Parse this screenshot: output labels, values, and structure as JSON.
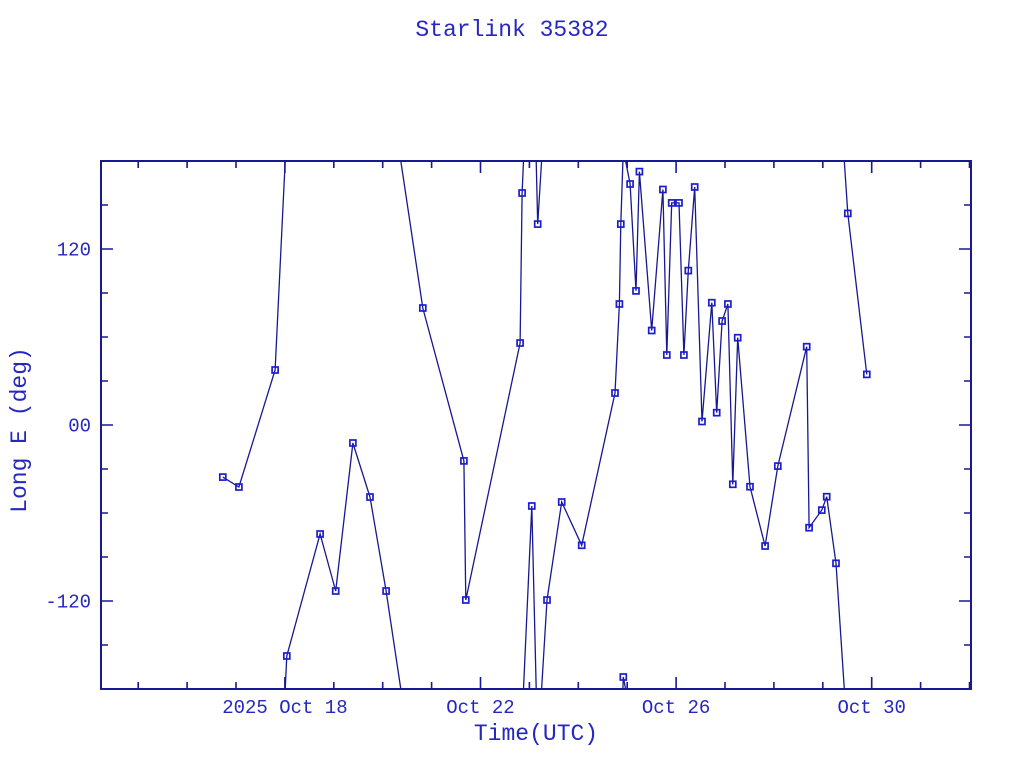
{
  "window": {
    "background": "#ffffff"
  },
  "title": "Starlink 35382",
  "axes": {
    "ylabel": "Long E (deg)",
    "xlabel": "Time(UTC)"
  },
  "colors": {
    "frame_and_line": "#181890",
    "marker": "#1d1dcf",
    "text": "#2626c3"
  },
  "chart_data": {
    "type": "line",
    "title": "Starlink 35382",
    "xlabel": "Time(UTC)",
    "ylabel": "Long E (deg)",
    "x_units": "day of October 2025, UTC (32 = Nov 1)",
    "y_units": "degrees east longitude",
    "xlim": [
      14.24,
      32.03
    ],
    "ylim": [
      -180,
      180
    ],
    "wrap_at": 180,
    "grid": false,
    "legend": false,
    "marker": "open-square",
    "x_minor_step_days": 1,
    "x_major_ticks": [
      18,
      22,
      26,
      30
    ],
    "x_major_tick_labels": [
      "2025 Oct 18",
      "Oct 22",
      "Oct 26",
      "Oct 30"
    ],
    "y_minor_step": 30,
    "y_major_ticks": [
      120,
      0,
      -120
    ],
    "y_major_tick_labels": [
      "120",
      "00",
      "-120"
    ],
    "points": [
      [
        16.73,
        -35.5
      ],
      [
        17.06,
        -42.3
      ],
      [
        17.8,
        37.5
      ],
      [
        18.04,
        -157.5
      ],
      [
        18.72,
        -74.3
      ],
      [
        19.04,
        -113.2
      ],
      [
        19.39,
        -12.3
      ],
      [
        19.74,
        -49.1
      ],
      [
        20.07,
        -113.2
      ],
      [
        20.82,
        79.8
      ],
      [
        21.66,
        -24.5
      ],
      [
        21.7,
        -119.3
      ],
      [
        22.81,
        55.9
      ],
      [
        22.85,
        158.2
      ],
      [
        23.05,
        -55.2
      ],
      [
        23.17,
        137.0
      ],
      [
        23.36,
        -119.3
      ],
      [
        23.66,
        -52.5
      ],
      [
        24.07,
        -82.0
      ],
      [
        24.75,
        21.8
      ],
      [
        24.84,
        82.5
      ],
      [
        24.87,
        137.0
      ],
      [
        24.92,
        -171.8
      ],
      [
        25.06,
        164.3
      ],
      [
        25.18,
        91.4
      ],
      [
        25.25,
        172.8
      ],
      [
        25.5,
        64.4
      ],
      [
        25.73,
        160.6
      ],
      [
        25.81,
        47.7
      ],
      [
        25.91,
        151.4
      ],
      [
        26.06,
        151.4
      ],
      [
        26.16,
        47.7
      ],
      [
        26.25,
        105.3
      ],
      [
        26.38,
        162.3
      ],
      [
        26.53,
        2.4
      ],
      [
        26.73,
        83.4
      ],
      [
        26.83,
        8.4
      ],
      [
        26.94,
        70.9
      ],
      [
        27.06,
        82.5
      ],
      [
        27.16,
        -40.4
      ],
      [
        27.26,
        59.5
      ],
      [
        27.51,
        -42.1
      ],
      [
        27.82,
        -82.5
      ],
      [
        28.08,
        -28.0
      ],
      [
        28.67,
        53.4
      ],
      [
        28.72,
        -70.0
      ],
      [
        28.98,
        -58.0
      ],
      [
        29.08,
        -48.9
      ],
      [
        29.27,
        -94.3
      ],
      [
        29.51,
        144.3
      ],
      [
        29.9,
        34.5
      ]
    ]
  }
}
